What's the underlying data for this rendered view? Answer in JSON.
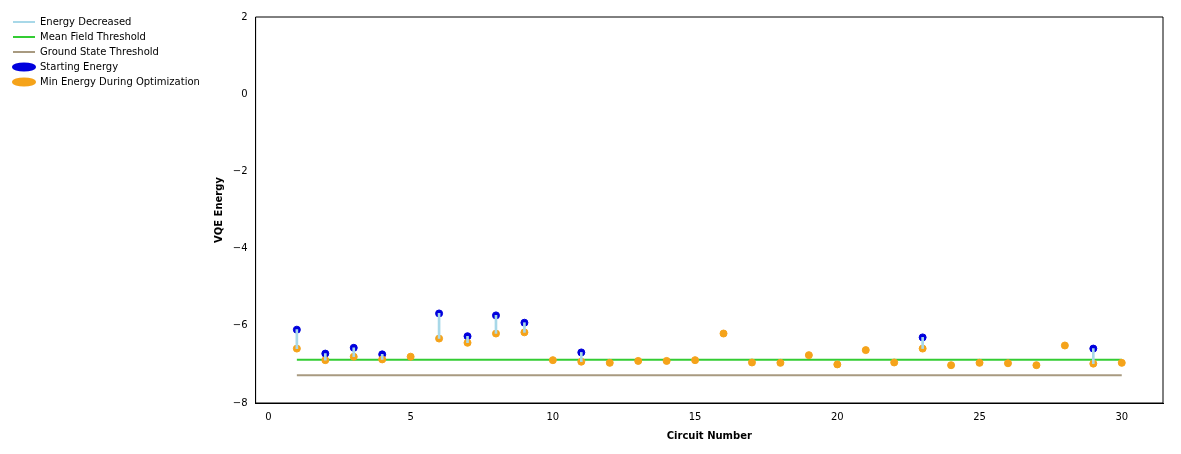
{
  "chart_data": {
    "type": "scatter",
    "xlabel": "Circuit Number",
    "ylabel": "VQE Energy",
    "x": [
      1,
      2,
      3,
      4,
      5,
      6,
      7,
      8,
      9,
      10,
      11,
      12,
      13,
      14,
      15,
      16,
      17,
      18,
      19,
      20,
      21,
      22,
      23,
      24,
      25,
      26,
      27,
      28,
      29,
      30
    ],
    "series": [
      {
        "name": "Energy Decreased",
        "type": "bar",
        "color": "#a8d8e8",
        "base": [
          -6.59,
          -6.89,
          -6.8,
          -6.87,
          null,
          -6.33,
          -6.44,
          -6.2,
          -6.17,
          null,
          -6.93,
          null,
          null,
          null,
          null,
          null,
          null,
          null,
          null,
          null,
          null,
          null,
          -6.59,
          null,
          null,
          null,
          null,
          null,
          -6.98,
          null
        ],
        "values": [
          0.49,
          0.17,
          0.23,
          0.13,
          null,
          0.65,
          0.17,
          0.47,
          0.25,
          null,
          0.24,
          null,
          null,
          null,
          null,
          null,
          null,
          null,
          null,
          null,
          null,
          null,
          0.29,
          null,
          null,
          null,
          null,
          null,
          0.39,
          null
        ]
      },
      {
        "name": "Mean Field Threshold",
        "type": "line",
        "color": "#33cc33",
        "values": [
          -6.88,
          -6.88,
          -6.88,
          -6.88,
          -6.88,
          -6.88,
          -6.88,
          -6.88,
          -6.88,
          -6.88,
          -6.88,
          -6.88,
          -6.88,
          -6.88,
          -6.88,
          -6.88,
          -6.88,
          -6.88,
          -6.88,
          -6.88,
          -6.88,
          -6.88,
          -6.88,
          -6.88,
          -6.88,
          -6.88,
          -6.88,
          -6.88,
          -6.88,
          -6.88
        ]
      },
      {
        "name": "Ground State Threshold",
        "type": "line",
        "color": "#a89a80",
        "values": [
          -7.28,
          -7.28,
          -7.28,
          -7.28,
          -7.28,
          -7.28,
          -7.28,
          -7.28,
          -7.28,
          -7.28,
          -7.28,
          -7.28,
          -7.28,
          -7.28,
          -7.28,
          -7.28,
          -7.28,
          -7.28,
          -7.28,
          -7.28,
          -7.28,
          -7.28,
          -7.28,
          -7.28,
          -7.28,
          -7.28,
          -7.28,
          -7.28,
          -7.28,
          -7.28
        ]
      },
      {
        "name": "Starting Energy",
        "color": "#0000dd",
        "values": [
          -6.1,
          -6.72,
          -6.57,
          -6.74,
          null,
          -5.68,
          -6.27,
          -5.73,
          -5.92,
          null,
          -6.69,
          null,
          null,
          null,
          null,
          null,
          null,
          null,
          null,
          null,
          null,
          null,
          -6.3,
          null,
          null,
          null,
          null,
          null,
          -6.59,
          null
        ]
      },
      {
        "name": "Min Energy During Optimization",
        "color": "#f5a31a",
        "values": [
          -6.59,
          -6.89,
          -6.8,
          -6.87,
          -6.8,
          -6.33,
          -6.44,
          -6.2,
          -6.17,
          -6.89,
          -6.93,
          -6.96,
          -6.91,
          -6.91,
          -6.89,
          -6.2,
          -6.95,
          -6.96,
          -6.76,
          -7.0,
          -6.63,
          -6.95,
          -6.59,
          -7.02,
          -6.96,
          -6.97,
          -7.02,
          -6.51,
          -6.98,
          -6.96
        ]
      }
    ],
    "xlim": [
      -0.45,
      31.45
    ],
    "xticks": [
      0,
      5,
      10,
      15,
      20,
      25,
      30
    ],
    "ylim": [
      -8,
      2
    ],
    "yticks": [
      {
        "value": -8,
        "label": "−8"
      },
      {
        "value": -6,
        "label": "−6"
      },
      {
        "value": -4,
        "label": "−4"
      },
      {
        "value": -2,
        "label": "−2"
      },
      0,
      2
    ],
    "legend": "top left",
    "grid": false
  }
}
